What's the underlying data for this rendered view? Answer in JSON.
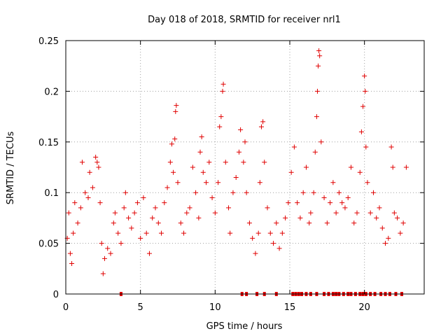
{
  "chart_data": {
    "type": "scatter",
    "title": "Day 018 of 2018, SRMTID for receiver nrl1",
    "xlabel": "GPS time / hours",
    "ylabel": "SRMTID / TECUs",
    "xlim": [
      0,
      24
    ],
    "ylim": [
      0,
      0.25
    ],
    "xticks": [
      0,
      5,
      10,
      15,
      20
    ],
    "xtick_labels": [
      "0",
      "5",
      "10",
      "15",
      "20"
    ],
    "yticks": [
      0,
      0.05,
      0.1,
      0.15,
      0.2,
      0.25
    ],
    "ytick_labels": [
      "0",
      "0.05",
      "0.1",
      "0.15",
      "0.2",
      "0.25"
    ],
    "grid": true,
    "legend": "none",
    "marker": "plus",
    "color": "#e00000",
    "series": [
      {
        "name": "SRMTID",
        "points": [
          [
            0.1,
            0.055
          ],
          [
            0.2,
            0.08
          ],
          [
            0.3,
            0.04
          ],
          [
            0.4,
            0.03
          ],
          [
            0.5,
            0.06
          ],
          [
            0.6,
            0.09
          ],
          [
            0.8,
            0.07
          ],
          [
            1.0,
            0.085
          ],
          [
            1.1,
            0.13
          ],
          [
            1.3,
            0.1
          ],
          [
            1.5,
            0.095
          ],
          [
            1.6,
            0.12
          ],
          [
            1.8,
            0.105
          ],
          [
            2.0,
            0.135
          ],
          [
            2.1,
            0.13
          ],
          [
            2.2,
            0.125
          ],
          [
            2.3,
            0.09
          ],
          [
            2.4,
            0.05
          ],
          [
            2.5,
            0.02
          ],
          [
            2.6,
            0.035
          ],
          [
            2.8,
            0.045
          ],
          [
            3.0,
            0.04
          ],
          [
            3.2,
            0.07
          ],
          [
            3.3,
            0.08
          ],
          [
            3.5,
            0.06
          ],
          [
            3.7,
            0.05
          ],
          [
            3.9,
            0.085
          ],
          [
            4.0,
            0.1
          ],
          [
            4.2,
            0.075
          ],
          [
            4.4,
            0.065
          ],
          [
            4.6,
            0.08
          ],
          [
            4.8,
            0.09
          ],
          [
            5.0,
            0.055
          ],
          [
            5.2,
            0.095
          ],
          [
            5.4,
            0.06
          ],
          [
            5.6,
            0.04
          ],
          [
            5.8,
            0.075
          ],
          [
            6.0,
            0.085
          ],
          [
            6.2,
            0.07
          ],
          [
            6.4,
            0.06
          ],
          [
            6.6,
            0.09
          ],
          [
            6.8,
            0.105
          ],
          [
            7.0,
            0.13
          ],
          [
            7.1,
            0.148
          ],
          [
            7.2,
            0.12
          ],
          [
            7.3,
            0.153
          ],
          [
            7.35,
            0.18
          ],
          [
            7.4,
            0.186
          ],
          [
            7.5,
            0.11
          ],
          [
            7.7,
            0.07
          ],
          [
            7.9,
            0.06
          ],
          [
            8.1,
            0.08
          ],
          [
            8.3,
            0.085
          ],
          [
            8.5,
            0.125
          ],
          [
            8.7,
            0.1
          ],
          [
            8.9,
            0.075
          ],
          [
            9.0,
            0.14
          ],
          [
            9.1,
            0.155
          ],
          [
            9.2,
            0.12
          ],
          [
            9.4,
            0.11
          ],
          [
            9.6,
            0.13
          ],
          [
            9.8,
            0.095
          ],
          [
            10.0,
            0.08
          ],
          [
            10.2,
            0.11
          ],
          [
            10.3,
            0.165
          ],
          [
            10.4,
            0.175
          ],
          [
            10.5,
            0.2
          ],
          [
            10.55,
            0.207
          ],
          [
            10.7,
            0.13
          ],
          [
            10.9,
            0.085
          ],
          [
            11.0,
            0.06
          ],
          [
            11.2,
            0.1
          ],
          [
            11.4,
            0.115
          ],
          [
            11.6,
            0.14
          ],
          [
            11.7,
            0.162
          ],
          [
            11.9,
            0.13
          ],
          [
            12.0,
            0.15
          ],
          [
            12.1,
            0.1
          ],
          [
            12.3,
            0.07
          ],
          [
            12.5,
            0.055
          ],
          [
            12.7,
            0.04
          ],
          [
            12.9,
            0.06
          ],
          [
            13.0,
            0.11
          ],
          [
            13.1,
            0.165
          ],
          [
            13.2,
            0.17
          ],
          [
            13.3,
            0.13
          ],
          [
            13.5,
            0.085
          ],
          [
            13.7,
            0.06
          ],
          [
            13.9,
            0.05
          ],
          [
            14.1,
            0.07
          ],
          [
            14.3,
            0.045
          ],
          [
            14.5,
            0.06
          ],
          [
            14.7,
            0.075
          ],
          [
            14.9,
            0.09
          ],
          [
            15.1,
            0.12
          ],
          [
            15.3,
            0.145
          ],
          [
            15.5,
            0.09
          ],
          [
            15.7,
            0.075
          ],
          [
            15.9,
            0.1
          ],
          [
            16.1,
            0.125
          ],
          [
            16.3,
            0.07
          ],
          [
            16.4,
            0.08
          ],
          [
            16.6,
            0.1
          ],
          [
            16.7,
            0.14
          ],
          [
            16.8,
            0.175
          ],
          [
            16.85,
            0.2
          ],
          [
            16.9,
            0.225
          ],
          [
            16.95,
            0.24
          ],
          [
            17.0,
            0.235
          ],
          [
            17.1,
            0.15
          ],
          [
            17.3,
            0.095
          ],
          [
            17.5,
            0.07
          ],
          [
            17.7,
            0.09
          ],
          [
            17.9,
            0.11
          ],
          [
            18.1,
            0.08
          ],
          [
            18.3,
            0.1
          ],
          [
            18.5,
            0.09
          ],
          [
            18.7,
            0.085
          ],
          [
            18.9,
            0.095
          ],
          [
            19.1,
            0.125
          ],
          [
            19.3,
            0.07
          ],
          [
            19.5,
            0.08
          ],
          [
            19.7,
            0.12
          ],
          [
            19.8,
            0.16
          ],
          [
            19.9,
            0.185
          ],
          [
            20.0,
            0.215
          ],
          [
            20.05,
            0.2
          ],
          [
            20.1,
            0.145
          ],
          [
            20.2,
            0.11
          ],
          [
            20.4,
            0.08
          ],
          [
            20.6,
            0.1
          ],
          [
            20.8,
            0.075
          ],
          [
            21.0,
            0.085
          ],
          [
            21.2,
            0.065
          ],
          [
            21.4,
            0.05
          ],
          [
            21.6,
            0.055
          ],
          [
            21.8,
            0.145
          ],
          [
            21.9,
            0.125
          ],
          [
            22.0,
            0.08
          ],
          [
            22.2,
            0.075
          ],
          [
            22.4,
            0.06
          ],
          [
            22.6,
            0.07
          ],
          [
            22.8,
            0.125
          ]
        ]
      }
    ],
    "zero_points_x": [
      3.7,
      11.8,
      12.1,
      12.8,
      13.3,
      14.1,
      15.2,
      15.4,
      15.6,
      15.8,
      16.1,
      16.4,
      16.8,
      17.3,
      17.6,
      17.9,
      18.1,
      18.3,
      18.6,
      18.9,
      19.1,
      19.4,
      19.7,
      19.9,
      20.1,
      20.4,
      20.7,
      21.1,
      21.4,
      21.7,
      22.1,
      22.5
    ]
  }
}
